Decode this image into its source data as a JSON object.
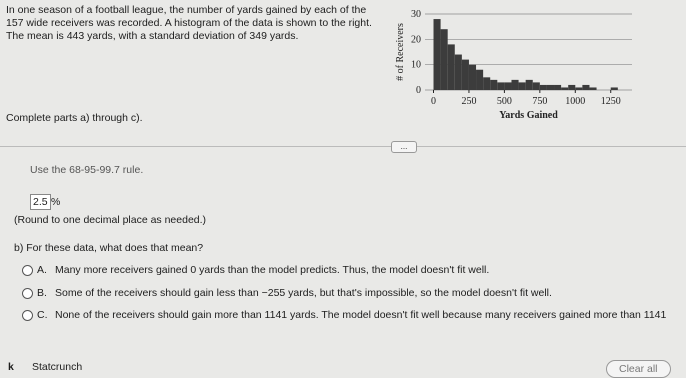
{
  "question": {
    "intro": [
      "In one season of a football league, the number of yards gained by each of the",
      "157 wide receivers was recorded. A histogram of the data is shown to the right.",
      "The mean is 443 yards, with a standard deviation of 349 yards."
    ],
    "instruction": "Complete parts a) through c).",
    "more_button": "...",
    "rule_note": "Use the 68-95-99.7 rule.",
    "answer": "2.5",
    "answer_unit": "%",
    "round_note": "(Round to one decimal place as needed.)",
    "part_b": "b) For these data, what does that mean?",
    "options": [
      {
        "letter": "A.",
        "text": "Many more receivers gained 0 yards than the model predicts. Thus, the model doesn't fit well."
      },
      {
        "letter": "B.",
        "text": "Some of the receivers should gain less than −255 yards, but that's impossible, so the model doesn't fit well."
      },
      {
        "letter": "C.",
        "text": "None of the receivers should gain more than 1141 yards. The model doesn't fit well because many receivers gained more than 1141"
      }
    ]
  },
  "footer": {
    "back": "k",
    "tool": "Statcrunch",
    "clear": "Clear all"
  },
  "chart_data": {
    "type": "histogram",
    "xlabel": "Yards Gained",
    "ylabel": "# of Receivers",
    "bins": [
      0,
      50,
      100,
      150,
      200,
      250,
      300,
      350,
      400,
      450,
      500,
      550,
      600,
      650,
      700,
      750,
      800,
      850,
      900,
      950,
      1000,
      1050,
      1100,
      1150,
      1200,
      1250,
      1300
    ],
    "counts": [
      28,
      24,
      18,
      14,
      12,
      10,
      8,
      5,
      4,
      3,
      3,
      4,
      3,
      4,
      3,
      2,
      2,
      2,
      1,
      2,
      1,
      2,
      1,
      0,
      0,
      1
    ],
    "color": "#3c3c3c",
    "xlim": [
      -60,
      1400
    ],
    "ylim": [
      0,
      30
    ],
    "xticks": [
      0,
      250,
      500,
      750,
      1000,
      1250
    ],
    "yticks": [
      0,
      10,
      20,
      30
    ],
    "grid": true
  }
}
